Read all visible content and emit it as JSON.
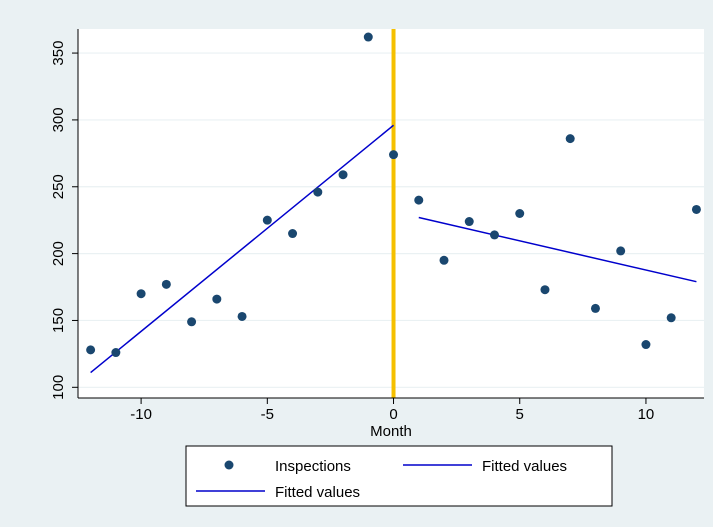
{
  "chart_data": {
    "type": "scatter",
    "title": "",
    "xlabel": "Month",
    "ylabel": "",
    "xlim": [
      -12.5,
      12.3
    ],
    "ylim": [
      92,
      368
    ],
    "xticks": [
      -10,
      -5,
      0,
      5,
      10
    ],
    "yticks": [
      100,
      150,
      200,
      250,
      300,
      350
    ],
    "xtick_labels": [
      "-10",
      "-5",
      "0",
      "5",
      "10"
    ],
    "ytick_labels": [
      "100",
      "150",
      "200",
      "250",
      "300",
      "350"
    ],
    "grid": true,
    "legend_position": "bottom",
    "colors": {
      "background": "#eaf1f3",
      "plot_background": "#ffffff",
      "grid": "#eaf1f3",
      "markers": "#1a476f",
      "fit_lines": "#0000cc",
      "reference_line": "#f5c000"
    },
    "series": [
      {
        "name": "Inspections",
        "kind": "scatter",
        "x": [
          -12,
          -11,
          -10,
          -9,
          -8,
          -7,
          -6,
          -5,
          -4,
          -3,
          -2,
          -1,
          0,
          1,
          2,
          3,
          4,
          5,
          6,
          7,
          8,
          9,
          10,
          11,
          12
        ],
        "y": [
          128,
          126,
          170,
          177,
          149,
          166,
          153,
          225,
          215,
          246,
          259,
          362,
          274,
          240,
          195,
          224,
          214,
          230,
          173,
          286,
          159,
          202,
          132,
          152,
          233
        ]
      },
      {
        "name": "Fitted values",
        "kind": "line",
        "x": [
          -12,
          0
        ],
        "y": [
          111,
          296
        ]
      },
      {
        "name": "Fitted values",
        "kind": "line",
        "x": [
          1,
          12
        ],
        "y": [
          227,
          179
        ]
      }
    ],
    "reference_lines": [
      {
        "axis": "x",
        "value": 0
      }
    ]
  }
}
